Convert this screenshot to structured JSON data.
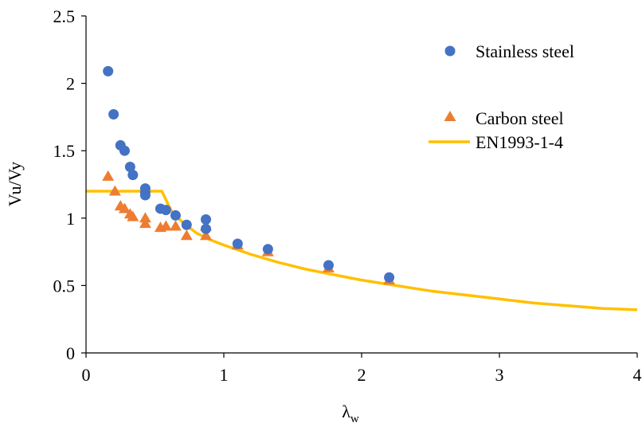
{
  "chart_data": {
    "type": "scatter",
    "xlabel": "λ",
    "xlabel_sub": "w",
    "ylabel": "Vu/Vy",
    "xlim": [
      0,
      4
    ],
    "ylim": [
      0,
      2.5
    ],
    "x_ticks": [
      "0",
      "1",
      "2",
      "3",
      "4"
    ],
    "y_ticks": [
      "0",
      "0.5",
      "1",
      "1.5",
      "2",
      "2.5"
    ],
    "grid": false,
    "legend_position": "top-right",
    "series": [
      {
        "name": "Stainless steel",
        "marker": "circle",
        "color": "#4472C4",
        "points": [
          [
            0.16,
            2.09
          ],
          [
            0.2,
            1.77
          ],
          [
            0.25,
            1.54
          ],
          [
            0.28,
            1.5
          ],
          [
            0.32,
            1.38
          ],
          [
            0.34,
            1.32
          ],
          [
            0.43,
            1.22
          ],
          [
            0.43,
            1.19
          ],
          [
            0.43,
            1.17
          ],
          [
            0.54,
            1.07
          ],
          [
            0.58,
            1.06
          ],
          [
            0.65,
            1.02
          ],
          [
            0.73,
            0.95
          ],
          [
            0.87,
            0.99
          ],
          [
            0.87,
            0.92
          ],
          [
            1.1,
            0.81
          ],
          [
            1.32,
            0.77
          ],
          [
            1.76,
            0.65
          ],
          [
            2.2,
            0.56
          ]
        ]
      },
      {
        "name": "Carbon steel",
        "marker": "triangle",
        "color": "#ED7D31",
        "points": [
          [
            0.16,
            1.31
          ],
          [
            0.21,
            1.2
          ],
          [
            0.25,
            1.09
          ],
          [
            0.28,
            1.07
          ],
          [
            0.32,
            1.03
          ],
          [
            0.34,
            1.01
          ],
          [
            0.43,
            1.0
          ],
          [
            0.43,
            0.96
          ],
          [
            0.54,
            0.93
          ],
          [
            0.58,
            0.94
          ],
          [
            0.65,
            0.94
          ],
          [
            0.73,
            0.87
          ],
          [
            0.87,
            0.94
          ],
          [
            0.87,
            0.87
          ],
          [
            1.1,
            0.8
          ],
          [
            1.32,
            0.75
          ],
          [
            1.76,
            0.63
          ],
          [
            2.2,
            0.54
          ]
        ]
      },
      {
        "name": "EN1993-1-4",
        "marker": "line",
        "color": "#FFC000",
        "points": [
          [
            0.0,
            1.2
          ],
          [
            0.55,
            1.2
          ],
          [
            0.62,
            1.05
          ],
          [
            0.7,
            0.97
          ],
          [
            0.8,
            0.89
          ],
          [
            0.9,
            0.84
          ],
          [
            1.0,
            0.8
          ],
          [
            1.2,
            0.73
          ],
          [
            1.4,
            0.67
          ],
          [
            1.6,
            0.62
          ],
          [
            1.8,
            0.58
          ],
          [
            2.0,
            0.54
          ],
          [
            2.25,
            0.5
          ],
          [
            2.5,
            0.46
          ],
          [
            2.75,
            0.43
          ],
          [
            3.0,
            0.4
          ],
          [
            3.25,
            0.37
          ],
          [
            3.5,
            0.35
          ],
          [
            3.75,
            0.33
          ],
          [
            4.0,
            0.32
          ]
        ]
      }
    ]
  }
}
